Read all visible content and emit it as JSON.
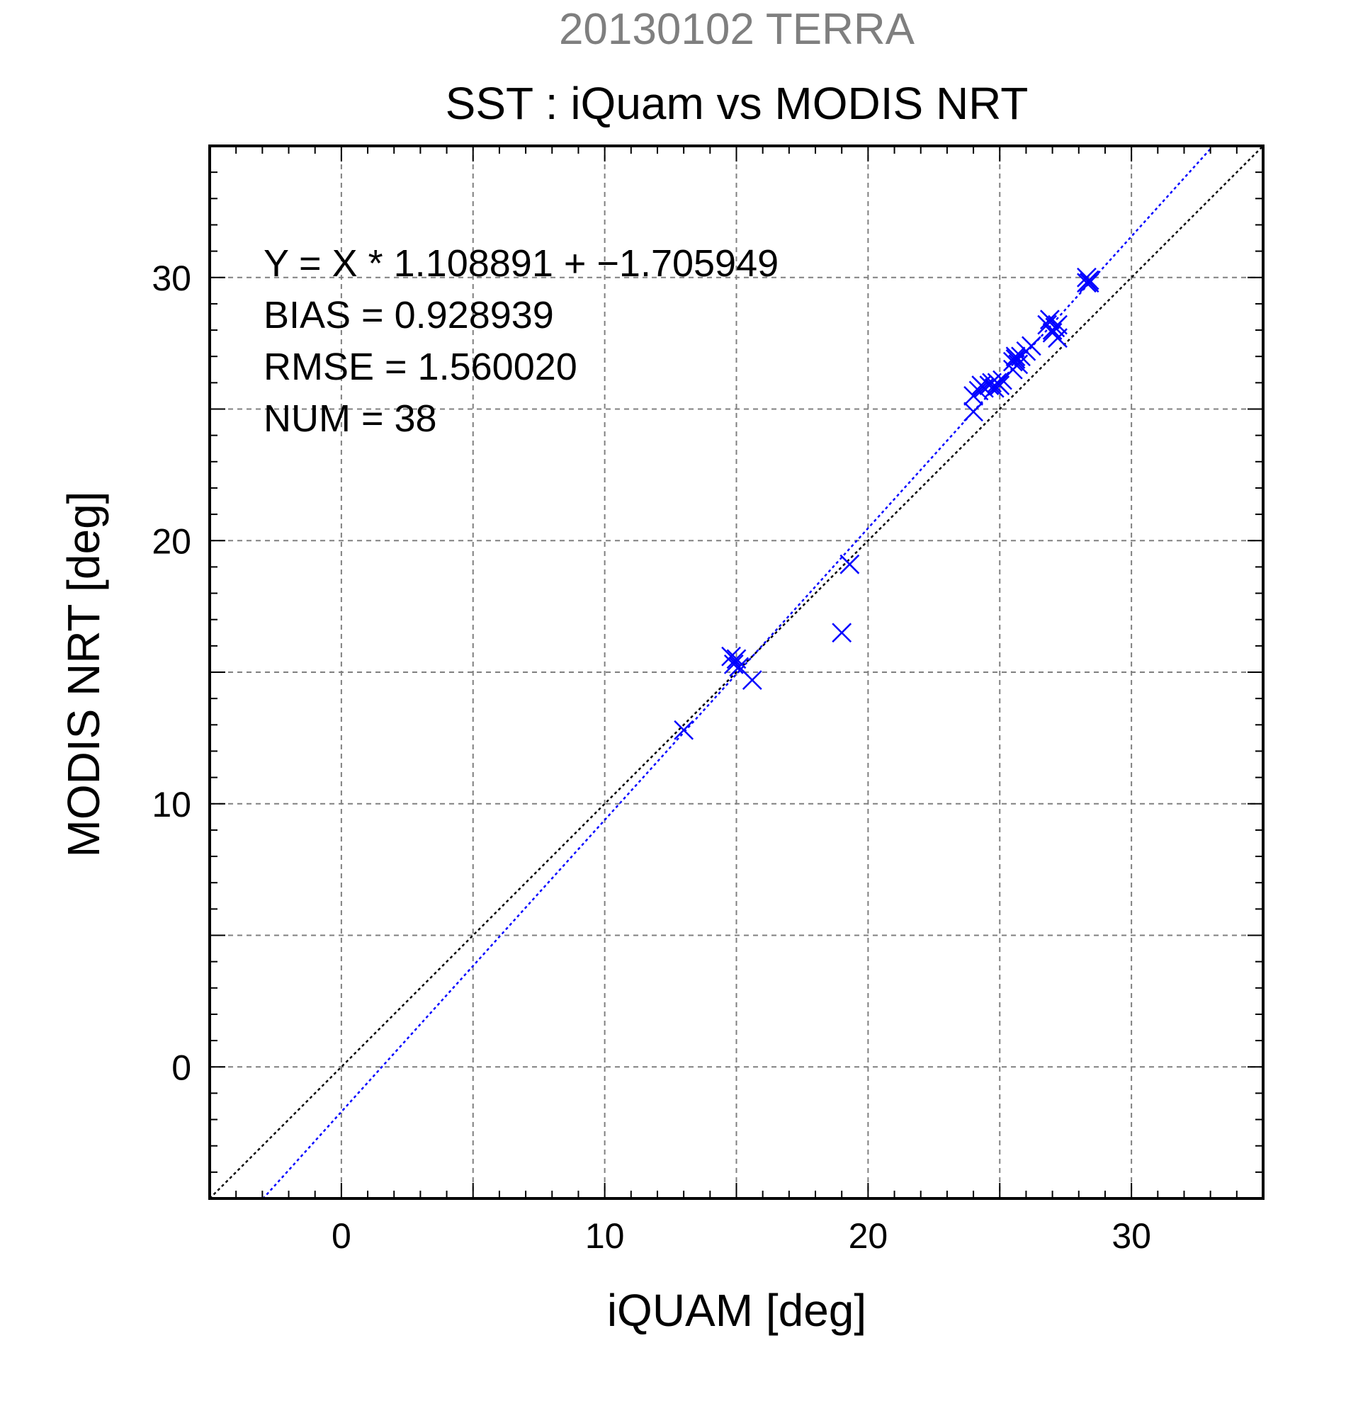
{
  "chart_data": {
    "type": "scatter",
    "date_title": "20130102 TERRA",
    "title": "SST : iQuam vs MODIS NRT",
    "xlabel": "iQUAM [deg]",
    "ylabel": "MODIS NRT [deg]",
    "xlim": [
      -5,
      35
    ],
    "ylim": [
      -5,
      35
    ],
    "x_ticks": [
      0,
      10,
      20,
      30
    ],
    "y_ticks": [
      0,
      10,
      20,
      30
    ],
    "x_tick_labels": [
      "0",
      "10",
      "20",
      "30"
    ],
    "y_tick_labels": [
      "0",
      "10",
      "20",
      "30"
    ],
    "grid": true,
    "grid_step": 5,
    "minor_tick_step": 1,
    "stats": [
      "Y = X * 1.108891 + −1.705949",
      "BIAS = 0.928939",
      "RMSE = 1.560020",
      "NUM = 38"
    ],
    "fit": {
      "slope": 1.108891,
      "intercept": -1.705949,
      "color": "#0000ff"
    },
    "identity_color": "#000000",
    "series": [
      {
        "marker": "x",
        "color": "#0000ff",
        "x": [
          13.0,
          14.8,
          14.9,
          15.0,
          15.1,
          15.6,
          19.0,
          19.3,
          24.0,
          24.0,
          24.2,
          24.3,
          24.4,
          24.6,
          24.7,
          24.8,
          24.9,
          25.0,
          25.1,
          25.5,
          25.5,
          25.6,
          25.6,
          25.7,
          25.8,
          26.0,
          26.2,
          26.8,
          26.9,
          27.0,
          27.0,
          27.1,
          27.2,
          27.2,
          28.3,
          28.3,
          28.4,
          28.4
        ],
        "y": [
          12.8,
          15.6,
          15.3,
          15.5,
          15.2,
          14.7,
          16.5,
          19.1,
          24.9,
          25.5,
          25.7,
          25.9,
          25.8,
          25.9,
          26.0,
          25.8,
          26.0,
          25.9,
          26.1,
          26.5,
          26.8,
          27.0,
          26.9,
          26.7,
          27.0,
          27.2,
          27.4,
          28.2,
          28.4,
          28.0,
          27.9,
          28.1,
          28.2,
          27.7,
          29.8,
          30.0,
          29.9,
          29.8
        ]
      }
    ]
  }
}
